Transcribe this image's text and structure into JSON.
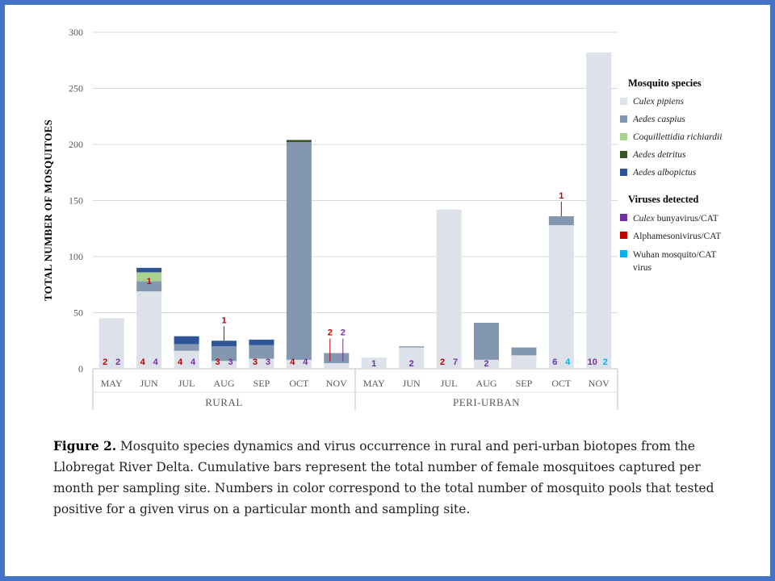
{
  "chart_data": {
    "type": "bar",
    "stacked": true,
    "ylabel": "TOTAL NUMBER OF MOSQUITOES",
    "ylim": [
      0,
      300
    ],
    "yticks": [
      0,
      50,
      100,
      150,
      200,
      250,
      300
    ],
    "grid": true,
    "groups": [
      {
        "name": "RURAL",
        "months": [
          "MAY",
          "JUN",
          "JUL",
          "AUG",
          "SEP",
          "OCT",
          "NOV"
        ]
      },
      {
        "name": "PERI-URBAN",
        "months": [
          "MAY",
          "JUN",
          "JUL",
          "AUG",
          "SEP",
          "OCT",
          "NOV"
        ]
      }
    ],
    "categories": [
      "MAY",
      "JUN",
      "JUL",
      "AUG",
      "SEP",
      "OCT",
      "NOV",
      "MAY",
      "JUN",
      "JUL",
      "AUG",
      "SEP",
      "OCT",
      "NOV"
    ],
    "species_legend_title": "Mosquito species",
    "series": [
      {
        "name": "Culex pipiens",
        "color": "#dde1ea",
        "values": [
          45,
          69,
          16,
          7,
          9,
          8,
          5,
          10,
          19,
          142,
          8,
          12,
          128,
          282
        ]
      },
      {
        "name": "Aedes caspius",
        "color": "#8497b0",
        "values": [
          0,
          9,
          6,
          13,
          12,
          194,
          9,
          0,
          1,
          0,
          33,
          7,
          8,
          0
        ]
      },
      {
        "name": "Coquillettidia richiardii",
        "color": "#a9d18e",
        "values": [
          0,
          8,
          0,
          0,
          0,
          0,
          0,
          0,
          0,
          0,
          0,
          0,
          0,
          0
        ]
      },
      {
        "name": "Aedes detritus",
        "color": "#375623",
        "values": [
          0,
          0,
          0,
          0,
          0,
          2,
          0,
          0,
          0,
          0,
          0,
          0,
          0,
          0
        ]
      },
      {
        "name": "Aedes albopictus",
        "color": "#2f5597",
        "values": [
          0,
          4,
          7,
          5,
          5,
          0,
          0,
          0,
          0,
          0,
          0,
          0,
          0,
          0
        ]
      }
    ],
    "virus_legend_title": "Viruses detected",
    "viruses": [
      {
        "name": "Culex bunyavirus/CAT",
        "name_italic": "Culex",
        "name_rest": " bunyavirus/CAT",
        "color": "#7030a0"
      },
      {
        "name": "Alphamesonivirus/CAT",
        "color": "#c00000"
      },
      {
        "name": "Wuhan mosquito/CAT virus",
        "line1": "Wuhan mosquito/CAT",
        "line2": "virus",
        "color": "#00b0f0"
      }
    ],
    "virus_labels": [
      {
        "index": 0,
        "virus": "Alphamesonivirus/CAT",
        "value": "2"
      },
      {
        "index": 0,
        "virus": "Culex bunyavirus/CAT",
        "value": "2"
      },
      {
        "index": 1,
        "virus": "Alphamesonivirus/CAT",
        "value": "4"
      },
      {
        "index": 1,
        "virus": "Culex bunyavirus/CAT",
        "value": "4"
      },
      {
        "index": 1,
        "virus": "Alphamesonivirus/CAT",
        "value": "1",
        "in_bar": true
      },
      {
        "index": 2,
        "virus": "Alphamesonivirus/CAT",
        "value": "4"
      },
      {
        "index": 2,
        "virus": "Culex bunyavirus/CAT",
        "value": "4"
      },
      {
        "index": 3,
        "virus": "Alphamesonivirus/CAT",
        "value": "3"
      },
      {
        "index": 3,
        "virus": "Culex bunyavirus/CAT",
        "value": "3"
      },
      {
        "index": 3,
        "virus": "Alphamesonivirus/CAT",
        "value": "1",
        "callout": true
      },
      {
        "index": 4,
        "virus": "Alphamesonivirus/CAT",
        "value": "3"
      },
      {
        "index": 4,
        "virus": "Culex bunyavirus/CAT",
        "value": "3"
      },
      {
        "index": 5,
        "virus": "Alphamesonivirus/CAT",
        "value": "4"
      },
      {
        "index": 5,
        "virus": "Culex bunyavirus/CAT",
        "value": "4"
      },
      {
        "index": 6,
        "virus": "Alphamesonivirus/CAT",
        "value": "2",
        "callout": true
      },
      {
        "index": 6,
        "virus": "Culex bunyavirus/CAT",
        "value": "2",
        "callout": true
      },
      {
        "index": 7,
        "virus": "Culex bunyavirus/CAT",
        "value": "1",
        "center": true
      },
      {
        "index": 8,
        "virus": "Culex bunyavirus/CAT",
        "value": "2",
        "center": true
      },
      {
        "index": 9,
        "virus": "Alphamesonivirus/CAT",
        "value": "2"
      },
      {
        "index": 9,
        "virus": "Culex bunyavirus/CAT",
        "value": "7"
      },
      {
        "index": 10,
        "virus": "Culex bunyavirus/CAT",
        "value": "2",
        "center": true
      },
      {
        "index": 12,
        "virus": "Culex bunyavirus/CAT",
        "value": "6"
      },
      {
        "index": 12,
        "virus": "Wuhan mosquito/CAT virus",
        "value": "4"
      },
      {
        "index": 12,
        "virus": "Alphamesonivirus/CAT",
        "value": "1",
        "callout": true
      },
      {
        "index": 13,
        "virus": "Culex bunyavirus/CAT",
        "value": "10"
      },
      {
        "index": 13,
        "virus": "Wuhan mosquito/CAT virus",
        "value": "2"
      }
    ]
  },
  "caption": {
    "label": "Figure 2.",
    "text": " Mosquito species dynamics and virus occurrence in rural and peri-urban biotopes from the Llobregat River Delta. Cumulative bars represent the total number of female mosquitoes captured per month per sampling site. Numbers in color correspond to the total number of mosquito pools that tested positive for a given virus on a particular month and sampling site."
  },
  "colors": {
    "frame": "#4472c4",
    "grid": "#d9d9d9",
    "axis_text": "#595959"
  }
}
